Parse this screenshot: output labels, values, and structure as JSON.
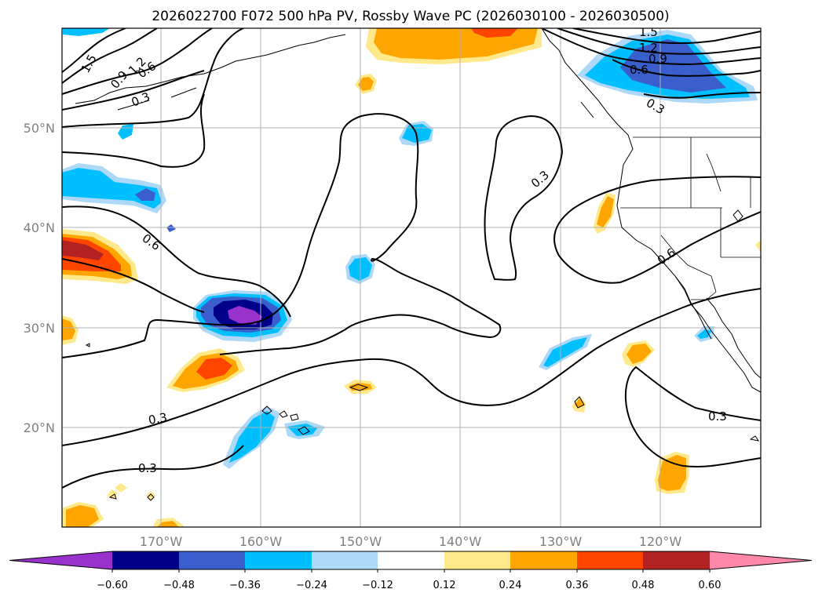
{
  "title": "2026022700 F072 500 hPa PV, Rossby Wave PC (2026030100 - 2026030500)",
  "lat_labels": [
    "50°N",
    "40°N",
    "30°N",
    "20°N"
  ],
  "lon_labels": [
    "170°W",
    "160°W",
    "150°W",
    "140°W",
    "130°W",
    "120°W"
  ],
  "colorbar": {
    "tick_labels": [
      "−0.60",
      "−0.48",
      "−0.36",
      "−0.24",
      "−0.12",
      "0.12",
      "0.24",
      "0.36",
      "0.48",
      "0.60"
    ],
    "colors": [
      "#9932CC",
      "#00008B",
      "#3A5FCD",
      "#00BFFF",
      "#ADD8F7",
      "#FFFFFF",
      "#FFE98A",
      "#FFA500",
      "#FF4500",
      "#B22222",
      "#FF88AA"
    ]
  },
  "contour_labels": [
    "1.5",
    "0.9",
    "1.2",
    "0.6",
    "0.3",
    "1.5",
    "1.2",
    "0.9",
    "0.6",
    "0.3",
    "0.6",
    "0.3",
    "0.6",
    "0.3",
    "0.3",
    "0.3"
  ],
  "chart_data": {
    "type": "heatmap",
    "title": "2026022700 F072 500 hPa PV, Rossby Wave PC (2026030100 - 2026030500)",
    "field": "500 hPa PV (contours) with Rossby Wave PC anomaly (shaded)",
    "lon_range": [
      -180,
      -110
    ],
    "lat_range": [
      10,
      60
    ],
    "contour_levels": [
      0.3,
      0.6,
      0.9,
      1.2,
      1.5
    ],
    "shading_levels": [
      -0.6,
      -0.48,
      -0.36,
      -0.24,
      -0.12,
      0.12,
      0.24,
      0.36,
      0.48,
      0.6
    ]
  }
}
